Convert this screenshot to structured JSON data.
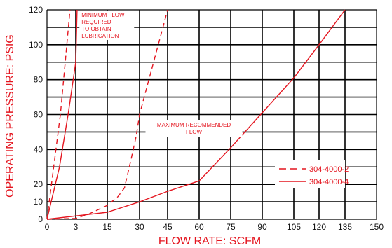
{
  "chart_data": {
    "type": "line",
    "title": "",
    "xlabel": "FLOW RATE: SCFM",
    "ylabel": "OPERATING PRESSURE: PSIG",
    "x_ticks": [
      0,
      3,
      15,
      30,
      45,
      60,
      75,
      90,
      105,
      120,
      135,
      150
    ],
    "y_ticks": [
      0,
      10,
      20,
      40,
      60,
      80,
      100,
      120
    ],
    "ylim": [
      0,
      120
    ],
    "grid": true,
    "legend_position": "bottom-right",
    "colors": {
      "series": "#e4151f",
      "grid": "#000000",
      "text": "#111111"
    },
    "series": [
      {
        "name": "304-4000-2",
        "group": "minimum",
        "style": "dashed",
        "points": [
          [
            0,
            0
          ],
          [
            1.4,
            60
          ],
          [
            1.9,
            90
          ],
          [
            2.4,
            120
          ]
        ]
      },
      {
        "name": "304-4000-4",
        "group": "minimum",
        "style": "solid",
        "points": [
          [
            0,
            0
          ],
          [
            1.3,
            30
          ],
          [
            2.2,
            60
          ],
          [
            3,
            90
          ],
          [
            3.5,
            120
          ]
        ]
      },
      {
        "name": "304-4000-2",
        "group": "maximum",
        "style": "dashed",
        "points": [
          [
            0,
            0
          ],
          [
            3,
            0.5
          ],
          [
            8,
            3
          ],
          [
            15,
            8
          ],
          [
            20,
            13
          ],
          [
            23,
            18
          ],
          [
            26,
            34
          ],
          [
            28.5,
            48
          ],
          [
            30,
            60
          ],
          [
            35,
            80
          ],
          [
            40,
            100
          ],
          [
            45,
            120
          ]
        ]
      },
      {
        "name": "304-4000-4",
        "group": "maximum",
        "style": "solid",
        "points": [
          [
            0,
            0
          ],
          [
            15,
            4
          ],
          [
            30,
            10
          ],
          [
            45,
            16
          ],
          [
            60,
            22
          ],
          [
            75,
            41
          ],
          [
            90,
            61
          ],
          [
            105,
            81
          ],
          [
            120,
            100
          ],
          [
            135,
            120
          ]
        ]
      }
    ],
    "annotations": [
      {
        "text": "MINIMUM FLOW\nREQUIRED\nTO OBTAIN\nLUBRICATION",
        "x": 5.2,
        "y": 116
      },
      {
        "text": "MAXIMUM RECOMMENDED\nFLOW",
        "x": 57.5,
        "y": 53
      }
    ],
    "legend": [
      {
        "label": "304-4000-2",
        "style": "dashed"
      },
      {
        "label": "304-4000-4",
        "style": "solid"
      }
    ]
  }
}
